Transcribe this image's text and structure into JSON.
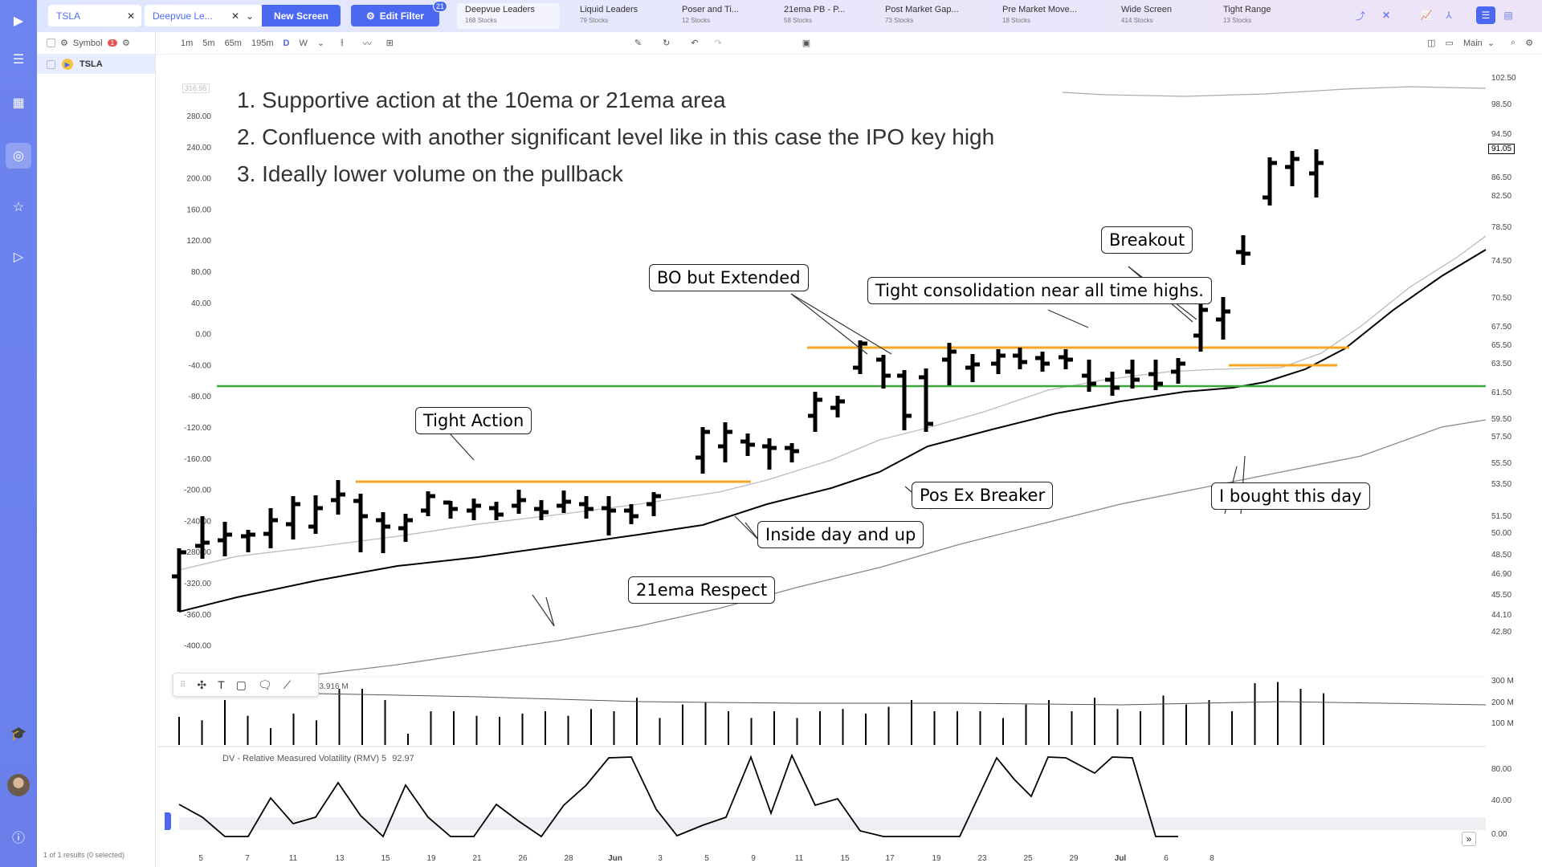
{
  "topbar": {
    "symbol": "TSLA",
    "screen": "Deepvue Le...",
    "new_screen": "New Screen",
    "edit_filter": "Edit Filter",
    "filter_count": "21",
    "screens": [
      {
        "name": "Deepvue Leaders",
        "count": "168 Stocks"
      },
      {
        "name": "Liquid Leaders",
        "count": "79 Stocks"
      },
      {
        "name": "Poser and Ti...",
        "count": "12 Stocks"
      },
      {
        "name": "21ema PB - P...",
        "count": "58 Stocks"
      },
      {
        "name": "Post Market Gap...",
        "count": "73 Stocks"
      },
      {
        "name": "Pre Market Move...",
        "count": "18 Stocks"
      },
      {
        "name": "Wide Screen",
        "count": "414 Stocks"
      },
      {
        "name": "Tight Range",
        "count": "13 Stocks"
      }
    ]
  },
  "sidebar": {
    "header": "Symbol",
    "alert_count": "1",
    "rows": [
      {
        "symbol": "TSLA"
      }
    ],
    "footer": "1 of 1 results (0 selected)"
  },
  "toolbar": {
    "intervals": [
      "1m",
      "5m",
      "65m",
      "195m",
      "D",
      "W"
    ],
    "active_interval": "D",
    "layout_label": "Main"
  },
  "chart": {
    "rules": [
      "1. Supportive action at the 10ema or 21ema area",
      "2. Confluence with another significant level like in this case the IPO key high",
      "3. Ideally lower volume on the pullback"
    ],
    "annotations": [
      "Tight Action",
      "21ema Respect",
      "Inside day and up",
      "BO but Extended",
      "Pos Ex Breaker",
      "Tight consolidation near all time highs.",
      "Breakout",
      "I bought this day"
    ],
    "price_label_left_top": "316.95",
    "price_label_right": "91.05",
    "left_axis": [
      "280.00",
      "240.00",
      "200.00",
      "160.00",
      "120.00",
      "80.00",
      "40.00",
      "0.00",
      "-40.00",
      "-80.00",
      "-120.00",
      "-160.00",
      "-200.00",
      "-240.00",
      "-280.00",
      "-320.00",
      "-360.00",
      "-400.00"
    ],
    "right_axis": [
      "102.50",
      "98.50",
      "94.50",
      "86.50",
      "82.50",
      "78.50",
      "74.50",
      "70.50",
      "67.50",
      "65.50",
      "63.50",
      "61.50",
      "59.50",
      "57.50",
      "55.50",
      "53.50",
      "51.50",
      "50.00",
      "48.50",
      "46.90",
      "45.50",
      "44.10",
      "42.80"
    ],
    "volume_axis": [
      "300 M",
      "200 M",
      "100 M"
    ],
    "volume_label": "73.916 M",
    "rmv_label": "DV - Relative Measured Volatility (RMV) 5",
    "rmv_value": "92.97",
    "rmv_axis": [
      "80.00",
      "40.00",
      "0.00"
    ],
    "date_axis": [
      "5",
      "7",
      "11",
      "13",
      "15",
      "19",
      "21",
      "26",
      "28",
      "Jun",
      "3",
      "5",
      "9",
      "11",
      "15",
      "17",
      "19",
      "23",
      "25",
      "29",
      "Jul",
      "6",
      "8"
    ],
    "colors": {
      "ema_line": "#000000",
      "level_line": "#f5a623",
      "support_line": "#3aa63a",
      "bars": "#000000"
    }
  }
}
